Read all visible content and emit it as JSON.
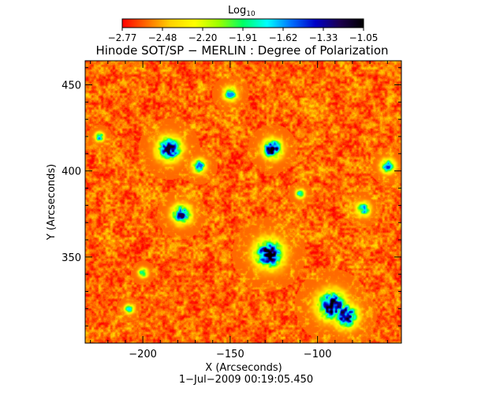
{
  "colorbar": {
    "label_base": "Log",
    "label_sub": "10",
    "tick_labels": [
      "-2.77",
      "-2.48",
      "-2.20",
      "-1.91",
      "-1.62",
      "-1.33",
      "-1.05"
    ],
    "range": [
      -2.77,
      -1.05
    ],
    "colors": [
      "#ff0000",
      "#ff6a00",
      "#ffd200",
      "#ffff00",
      "#9cff00",
      "#00ff64",
      "#00ffff",
      "#0070ff",
      "#0000c8",
      "#1c0050",
      "#000000"
    ]
  },
  "chart_data": {
    "type": "heatmap",
    "title": "Hinode SOT/SP − MERLIN : Degree of Polarization",
    "xlabel": "X (Arcseconds)",
    "ylabel": "Y (Arcseconds)",
    "xlim": [
      -233,
      -52
    ],
    "ylim": [
      300,
      464
    ],
    "x_ticks": [
      -200,
      -150,
      -100
    ],
    "y_ticks": [
      350,
      400,
      450
    ],
    "x_tick_labels": [
      "−200",
      "−150",
      "−100"
    ],
    "y_tick_labels": [
      "350",
      "400",
      "450"
    ],
    "value_range": [
      -2.77,
      -1.05
    ],
    "background_level": -2.6,
    "features": [
      {
        "x": -185,
        "y": 413,
        "peak": -1.12,
        "size": 5
      },
      {
        "x": -126,
        "y": 413,
        "peak": -1.06,
        "size": 4
      },
      {
        "x": -168,
        "y": 403,
        "peak": -1.55,
        "size": 3
      },
      {
        "x": -178,
        "y": 375,
        "peak": -1.2,
        "size": 4
      },
      {
        "x": -128,
        "y": 352,
        "peak": -1.05,
        "size": 6
      },
      {
        "x": -92,
        "y": 322,
        "peak": -1.05,
        "size": 6
      },
      {
        "x": -84,
        "y": 316,
        "peak": -1.08,
        "size": 5
      },
      {
        "x": -74,
        "y": 378,
        "peak": -1.55,
        "size": 3
      },
      {
        "x": -60,
        "y": 403,
        "peak": -1.45,
        "size": 3
      },
      {
        "x": -150,
        "y": 445,
        "peak": -1.6,
        "size": 3
      },
      {
        "x": -200,
        "y": 341,
        "peak": -1.6,
        "size": 2
      },
      {
        "x": -208,
        "y": 320,
        "peak": -1.7,
        "size": 2
      },
      {
        "x": -110,
        "y": 387,
        "peak": -1.7,
        "size": 2
      },
      {
        "x": -225,
        "y": 420,
        "peak": -1.55,
        "size": 2
      }
    ]
  },
  "footer": {
    "timestamp": "1−Jul−2009 00:19:05.450"
  }
}
